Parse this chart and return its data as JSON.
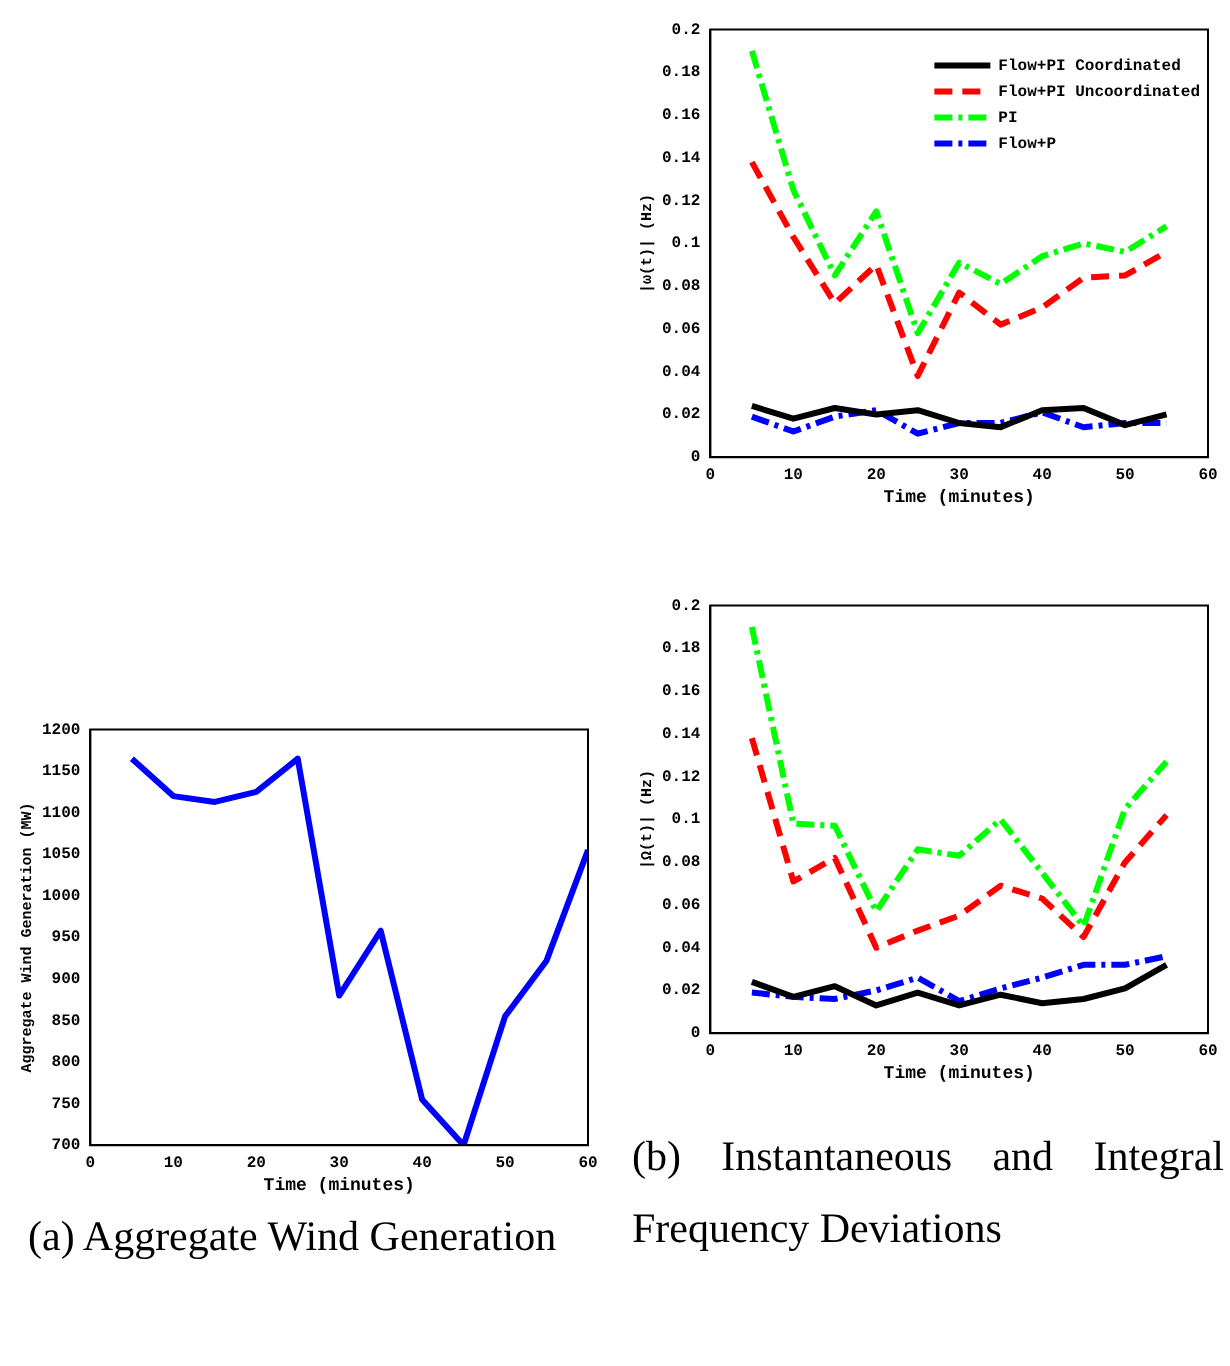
{
  "chart_data": [
    {
      "type": "line",
      "xlabel": "Time (minutes)",
      "ylabel": "Aggregate Wind Generation (MW)",
      "x": [
        5,
        10,
        15,
        20,
        25,
        30,
        35,
        40,
        45,
        50,
        55,
        60
      ],
      "series": [
        {
          "color": "#0000ff",
          "line_style": "solid",
          "values": [
            1165,
            1120,
            1113,
            1125,
            1165,
            880,
            958,
            755,
            700,
            855,
            922,
            1055
          ]
        }
      ],
      "xlim": [
        0,
        60
      ],
      "xticks": [
        0,
        10,
        20,
        30,
        40,
        50,
        60
      ],
      "ylim": [
        700,
        1200
      ],
      "yticks": [
        700,
        750,
        800,
        850,
        900,
        950,
        1000,
        1050,
        1100,
        1150,
        1200
      ],
      "grid": false,
      "legend": false,
      "marker": "none",
      "annotations": [
        "(a) Aggregate Wind Generation"
      ]
    },
    {
      "type": "line",
      "xlabel": "Time (minutes)",
      "ylabel": "|ω(t)| (Hz)",
      "x": [
        5,
        10,
        15,
        20,
        25,
        30,
        35,
        40,
        45,
        50,
        55
      ],
      "series": [
        {
          "name": "Flow+PI Coordinated",
          "color": "#000000",
          "line_style": "solid",
          "values": [
            0.024,
            0.018,
            0.023,
            0.02,
            0.022,
            0.016,
            0.014,
            0.022,
            0.023,
            0.015,
            0.02
          ]
        },
        {
          "name": "Flow+PI Uncoordinated",
          "color": "#ff0000",
          "line_style": "dashed",
          "values": [
            0.138,
            0.103,
            0.072,
            0.09,
            0.038,
            0.077,
            0.062,
            0.07,
            0.084,
            0.085,
            0.096
          ]
        },
        {
          "name": "PI",
          "color": "#00ff00",
          "line_style": "dotted",
          "values": [
            0.19,
            0.125,
            0.085,
            0.115,
            0.058,
            0.091,
            0.081,
            0.094,
            0.1,
            0.096,
            0.108
          ]
        },
        {
          "name": "Flow+P",
          "color": "#0000ff",
          "line_style": "dotted",
          "values": [
            0.019,
            0.012,
            0.019,
            0.022,
            0.011,
            0.016,
            0.016,
            0.021,
            0.014,
            0.016,
            0.016
          ]
        }
      ],
      "xlim": [
        0,
        60
      ],
      "xticks": [
        0,
        10,
        20,
        30,
        40,
        50,
        60
      ],
      "ylim": [
        0,
        0.2
      ],
      "yticks": [
        0,
        0.02,
        0.04,
        0.06,
        0.08,
        0.1,
        0.12,
        0.14,
        0.16,
        0.18,
        0.2
      ],
      "grid": false,
      "legend": "top right",
      "marker": "none"
    },
    {
      "type": "line",
      "xlabel": "Time (minutes)",
      "ylabel": "|Ω(t)| (Hz)",
      "x": [
        5,
        10,
        15,
        20,
        25,
        30,
        35,
        40,
        45,
        50,
        55
      ],
      "series": [
        {
          "color": "#000000",
          "line_style": "solid",
          "values": [
            0.024,
            0.017,
            0.022,
            0.013,
            0.019,
            0.013,
            0.018,
            0.014,
            0.016,
            0.021,
            0.032
          ]
        },
        {
          "color": "#ff0000",
          "line_style": "dashed",
          "values": [
            0.138,
            0.071,
            0.082,
            0.04,
            0.048,
            0.055,
            0.069,
            0.063,
            0.045,
            0.08,
            0.102
          ]
        },
        {
          "color": "#00ff00",
          "line_style": "dotted",
          "values": [
            0.19,
            0.098,
            0.097,
            0.057,
            0.086,
            0.083,
            0.1,
            0.075,
            0.05,
            0.105,
            0.127
          ]
        },
        {
          "color": "#0000ff",
          "line_style": "dotted",
          "values": [
            0.019,
            0.017,
            0.016,
            0.02,
            0.026,
            0.015,
            0.021,
            0.026,
            0.032,
            0.032,
            0.036
          ]
        }
      ],
      "xlim": [
        0,
        60
      ],
      "xticks": [
        0,
        10,
        20,
        30,
        40,
        50,
        60
      ],
      "ylim": [
        0,
        0.2
      ],
      "yticks": [
        0,
        0.02,
        0.04,
        0.06,
        0.08,
        0.1,
        0.12,
        0.14,
        0.16,
        0.18,
        0.2
      ],
      "grid": false,
      "legend": false,
      "marker": "none",
      "annotations": [
        "(b) Instantaneous and Integral Frequency Deviations"
      ]
    }
  ]
}
